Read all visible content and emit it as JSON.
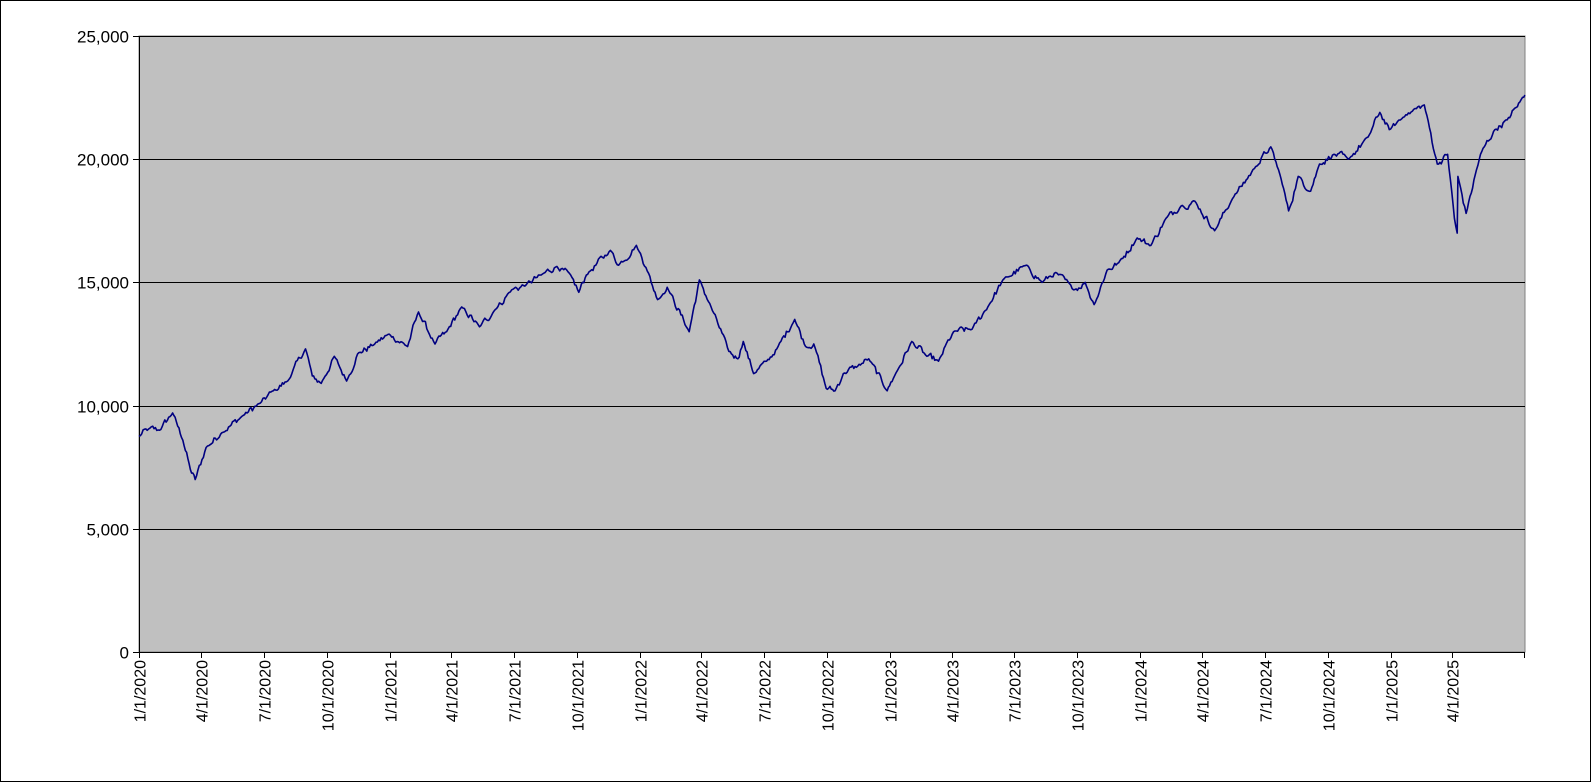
{
  "chart_data": {
    "type": "line",
    "title": "",
    "xlabel": "",
    "ylabel": "",
    "ylim": [
      0,
      25000
    ],
    "xlim": [
      "2020-01-01",
      "2025-07-16"
    ],
    "y_ticks": [
      0,
      5000,
      10000,
      15000,
      20000,
      25000
    ],
    "y_tick_labels": [
      "0",
      "5,000",
      "10,000",
      "15,000",
      "20,000",
      "25,000"
    ],
    "x_tick_dates": [
      "2020-01-01",
      "2020-04-01",
      "2020-07-01",
      "2020-10-01",
      "2021-01-01",
      "2021-04-01",
      "2021-07-01",
      "2021-10-01",
      "2022-01-01",
      "2022-04-01",
      "2022-07-01",
      "2022-10-01",
      "2023-01-01",
      "2023-04-01",
      "2023-07-01",
      "2023-10-01",
      "2024-01-01",
      "2024-04-01",
      "2024-07-01",
      "2024-10-01",
      "2025-01-01",
      "2025-04-01"
    ],
    "x_tick_labels": [
      "1/1/2020",
      "4/1/2020",
      "7/1/2020",
      "10/1/2020",
      "1/1/2021",
      "4/1/2021",
      "7/1/2021",
      "10/1/2021",
      "1/1/2022",
      "4/1/2022",
      "7/1/2022",
      "10/1/2022",
      "1/1/2023",
      "4/1/2023",
      "7/1/2023",
      "10/1/2023",
      "1/1/2024",
      "4/1/2024",
      "7/1/2024",
      "10/1/2024",
      "1/1/2025",
      "4/1/2025"
    ],
    "grid": true,
    "legend": "none",
    "colors": {
      "plot_background": "#c0c0c0",
      "line": "#000080",
      "gridline": "#000000"
    },
    "series": [
      {
        "points": [
          [
            "2020-01-01",
            8750
          ],
          [
            "2020-01-15",
            9050
          ],
          [
            "2020-01-31",
            9000
          ],
          [
            "2020-02-19",
            9700
          ],
          [
            "2020-03-05",
            8600
          ],
          [
            "2020-03-16",
            7400
          ],
          [
            "2020-03-23",
            7000
          ],
          [
            "2020-04-08",
            8300
          ],
          [
            "2020-05-01",
            8900
          ],
          [
            "2020-06-01",
            9600
          ],
          [
            "2020-06-26",
            10100
          ],
          [
            "2020-07-15",
            10600
          ],
          [
            "2020-08-05",
            11000
          ],
          [
            "2020-08-31",
            12300
          ],
          [
            "2020-09-10",
            11200
          ],
          [
            "2020-09-23",
            10900
          ],
          [
            "2020-10-12",
            12000
          ],
          [
            "2020-10-30",
            11000
          ],
          [
            "2020-11-15",
            12100
          ],
          [
            "2020-12-10",
            12500
          ],
          [
            "2020-12-31",
            12900
          ],
          [
            "2021-01-27",
            12400
          ],
          [
            "2021-02-12",
            13800
          ],
          [
            "2021-03-08",
            12500
          ],
          [
            "2021-03-25",
            13000
          ],
          [
            "2021-04-16",
            14000
          ],
          [
            "2021-05-12",
            13200
          ],
          [
            "2021-06-04",
            13900
          ],
          [
            "2021-06-28",
            14700
          ],
          [
            "2021-07-19",
            14900
          ],
          [
            "2021-08-10",
            15300
          ],
          [
            "2021-09-02",
            15650
          ],
          [
            "2021-09-24",
            15200
          ],
          [
            "2021-10-04",
            14600
          ],
          [
            "2021-10-15",
            15300
          ],
          [
            "2021-11-19",
            16300
          ],
          [
            "2021-12-01",
            15700
          ],
          [
            "2021-12-27",
            16500
          ],
          [
            "2022-01-10",
            15600
          ],
          [
            "2022-01-27",
            14300
          ],
          [
            "2022-02-10",
            14800
          ],
          [
            "2022-03-14",
            13000
          ],
          [
            "2022-03-29",
            15100
          ],
          [
            "2022-04-15",
            14000
          ],
          [
            "2022-05-11",
            12200
          ],
          [
            "2022-05-24",
            11900
          ],
          [
            "2022-06-01",
            12600
          ],
          [
            "2022-06-16",
            11300
          ],
          [
            "2022-07-05",
            11800
          ],
          [
            "2022-07-20",
            12300
          ],
          [
            "2022-08-15",
            13500
          ],
          [
            "2022-08-31",
            12400
          ],
          [
            "2022-09-12",
            12500
          ],
          [
            "2022-09-30",
            10700
          ],
          [
            "2022-10-13",
            10600
          ],
          [
            "2022-10-25",
            11300
          ],
          [
            "2022-11-15",
            11600
          ],
          [
            "2022-12-01",
            11900
          ],
          [
            "2022-12-28",
            10600
          ],
          [
            "2023-01-06",
            11100
          ],
          [
            "2023-02-02",
            12600
          ],
          [
            "2023-02-24",
            12000
          ],
          [
            "2023-03-13",
            11800
          ],
          [
            "2023-04-04",
            13000
          ],
          [
            "2023-05-01",
            13100
          ],
          [
            "2023-05-26",
            14100
          ],
          [
            "2023-06-15",
            15100
          ],
          [
            "2023-07-19",
            15700
          ],
          [
            "2023-08-11",
            15000
          ],
          [
            "2023-08-31",
            15400
          ],
          [
            "2023-09-26",
            14700
          ],
          [
            "2023-10-13",
            15000
          ],
          [
            "2023-10-26",
            14100
          ],
          [
            "2023-11-14",
            15500
          ],
          [
            "2023-12-01",
            15800
          ],
          [
            "2023-12-28",
            16800
          ],
          [
            "2024-01-17",
            16500
          ],
          [
            "2024-02-08",
            17600
          ],
          [
            "2024-03-01",
            18100
          ],
          [
            "2024-03-21",
            18300
          ],
          [
            "2024-04-19",
            17100
          ],
          [
            "2024-05-15",
            18400
          ],
          [
            "2024-06-18",
            19700
          ],
          [
            "2024-07-10",
            20500
          ],
          [
            "2024-07-25",
            19200
          ],
          [
            "2024-08-05",
            17900
          ],
          [
            "2024-08-19",
            19300
          ],
          [
            "2024-09-06",
            18700
          ],
          [
            "2024-09-19",
            19800
          ],
          [
            "2024-10-10",
            20200
          ],
          [
            "2024-10-31",
            20000
          ],
          [
            "2024-11-29",
            20900
          ],
          [
            "2024-12-16",
            21900
          ],
          [
            "2024-12-30",
            21200
          ],
          [
            "2025-01-23",
            21800
          ],
          [
            "2025-02-19",
            22200
          ],
          [
            "2025-03-10",
            19800
          ],
          [
            "2025-03-25",
            20200
          ],
          [
            "2025-04-04",
            17600
          ],
          [
            "2025-04-08",
            17000
          ],
          [
            "2025-04-09",
            19300
          ],
          [
            "2025-04-21",
            17800
          ],
          [
            "2025-05-12",
            20200
          ],
          [
            "2025-06-02",
            21200
          ],
          [
            "2025-06-20",
            21600
          ],
          [
            "2025-07-03",
            22100
          ],
          [
            "2025-07-16",
            22600
          ]
        ]
      }
    ]
  }
}
